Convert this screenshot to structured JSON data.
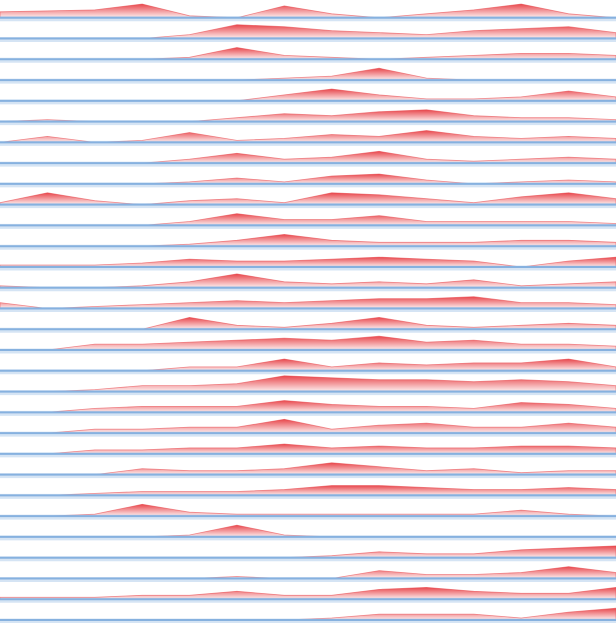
{
  "chart_data": {
    "type": "ridgeline",
    "x": [
      0,
      1,
      2,
      3,
      4,
      5,
      6,
      7,
      8,
      9,
      10,
      11,
      12,
      13
    ],
    "xlim": [
      0,
      13
    ],
    "ylim": [
      0,
      1
    ],
    "color": "#e8474c",
    "line_color": "#86b1df",
    "series": [
      {
        "values": [
          0.3,
          0.35,
          0.4,
          0.7,
          0.1,
          0,
          0.6,
          0.2,
          0,
          0.2,
          0.4,
          0.7,
          0.2,
          0
        ]
      },
      {
        "values": [
          0,
          0,
          0,
          0,
          0.2,
          0.7,
          0.6,
          0.4,
          0.3,
          0.2,
          0.4,
          0.5,
          0.6,
          0.3
        ]
      },
      {
        "values": [
          0,
          0,
          0,
          0,
          0.1,
          0.6,
          0.2,
          0.1,
          0,
          0.1,
          0.2,
          0.3,
          0.3,
          0.2
        ]
      },
      {
        "values": [
          0,
          0,
          0,
          0,
          0,
          0,
          0.1,
          0.2,
          0.6,
          0.1,
          0,
          0,
          0,
          0
        ]
      },
      {
        "values": [
          0,
          0,
          0,
          0,
          0,
          0,
          0.3,
          0.6,
          0.3,
          0.1,
          0.1,
          0.2,
          0.5,
          0.2
        ]
      },
      {
        "values": [
          0,
          0.1,
          0,
          0,
          0,
          0.2,
          0.4,
          0.3,
          0.5,
          0.6,
          0.3,
          0.2,
          0.2,
          0.1
        ]
      },
      {
        "values": [
          0,
          0.3,
          0,
          0.1,
          0.5,
          0.1,
          0.2,
          0.4,
          0.3,
          0.6,
          0.3,
          0.2,
          0.3,
          0.2
        ]
      },
      {
        "values": [
          0,
          0,
          0,
          0,
          0.2,
          0.5,
          0.2,
          0.3,
          0.6,
          0.2,
          0.1,
          0.2,
          0.3,
          0.2
        ]
      },
      {
        "values": [
          0,
          0,
          0,
          0,
          0.1,
          0.3,
          0.1,
          0.4,
          0.5,
          0.2,
          0,
          0.1,
          0.2,
          0.1
        ]
      },
      {
        "values": [
          0.1,
          0.6,
          0.2,
          0,
          0.2,
          0.3,
          0.1,
          0.6,
          0.5,
          0.3,
          0.1,
          0.4,
          0.6,
          0.3
        ]
      },
      {
        "values": [
          0,
          0,
          0,
          0,
          0.2,
          0.6,
          0.3,
          0.3,
          0.5,
          0.2,
          0.2,
          0.2,
          0.2,
          0.1
        ]
      },
      {
        "values": [
          0,
          0,
          0,
          0,
          0.1,
          0.3,
          0.6,
          0.3,
          0.2,
          0.2,
          0.2,
          0.3,
          0.3,
          0.2
        ]
      },
      {
        "values": [
          0.1,
          0.1,
          0.1,
          0.2,
          0.4,
          0.3,
          0.3,
          0.4,
          0.5,
          0.4,
          0.3,
          0,
          0.3,
          0.5
        ]
      },
      {
        "values": [
          0.1,
          0,
          0,
          0.1,
          0.3,
          0.7,
          0.3,
          0.2,
          0.3,
          0.2,
          0.4,
          0.1,
          0.2,
          0.3
        ]
      },
      {
        "values": [
          0.3,
          0,
          0.1,
          0.2,
          0.3,
          0.4,
          0.3,
          0.4,
          0.5,
          0.5,
          0.6,
          0.3,
          0.3,
          0.2
        ]
      },
      {
        "values": [
          0,
          0,
          0,
          0,
          0.6,
          0.2,
          0.1,
          0.3,
          0.6,
          0.2,
          0.1,
          0.2,
          0.3,
          0.2
        ]
      },
      {
        "values": [
          0,
          0,
          0.3,
          0.3,
          0.4,
          0.5,
          0.6,
          0.5,
          0.7,
          0.4,
          0.5,
          0.3,
          0.3,
          0.2
        ]
      },
      {
        "values": [
          0,
          0,
          0,
          0,
          0.2,
          0.2,
          0.6,
          0.2,
          0.4,
          0.3,
          0.4,
          0.4,
          0.6,
          0.2
        ]
      },
      {
        "values": [
          0,
          0,
          0.1,
          0.3,
          0.3,
          0.4,
          0.8,
          0.7,
          0.6,
          0.6,
          0.5,
          0.6,
          0.5,
          0.3
        ]
      },
      {
        "values": [
          0,
          0,
          0.2,
          0.3,
          0.3,
          0.3,
          0.6,
          0.4,
          0.3,
          0.3,
          0.2,
          0.5,
          0.4,
          0.2
        ]
      },
      {
        "values": [
          0,
          0,
          0.2,
          0.2,
          0.3,
          0.3,
          0.7,
          0.2,
          0.4,
          0.5,
          0.3,
          0.3,
          0.5,
          0.3
        ]
      },
      {
        "values": [
          0,
          0,
          0.2,
          0.2,
          0.3,
          0.3,
          0.5,
          0.3,
          0.4,
          0.3,
          0.3,
          0.4,
          0.4,
          0.3
        ]
      },
      {
        "values": [
          0,
          0,
          0,
          0.3,
          0.2,
          0.2,
          0.3,
          0.6,
          0.4,
          0.2,
          0.3,
          0.1,
          0.2,
          0.2
        ]
      },
      {
        "values": [
          0,
          0,
          0.1,
          0.2,
          0.2,
          0.2,
          0.3,
          0.5,
          0.5,
          0.4,
          0.3,
          0.3,
          0.4,
          0.3
        ]
      },
      {
        "values": [
          0,
          0,
          0.1,
          0.6,
          0.2,
          0.1,
          0.1,
          0.1,
          0.1,
          0.1,
          0.1,
          0.3,
          0.1,
          0
        ]
      },
      {
        "values": [
          0,
          0,
          0,
          0,
          0.1,
          0.6,
          0.1,
          0,
          0,
          0,
          0,
          0,
          0,
          0
        ]
      },
      {
        "values": [
          0,
          0,
          0,
          0,
          0,
          0,
          0,
          0.1,
          0.3,
          0.2,
          0.2,
          0.4,
          0.5,
          0.6
        ]
      },
      {
        "values": [
          0,
          0,
          0,
          0,
          0,
          0.1,
          0,
          0,
          0.4,
          0.2,
          0.2,
          0.3,
          0.6,
          0.3
        ]
      },
      {
        "values": [
          0.1,
          0.1,
          0.1,
          0.2,
          0.2,
          0.4,
          0.2,
          0.2,
          0.5,
          0.6,
          0.4,
          0.3,
          0.3,
          0.6
        ]
      },
      {
        "values": [
          0,
          0,
          0,
          0,
          0,
          0,
          0,
          0.1,
          0.3,
          0.3,
          0.3,
          0.1,
          0.4,
          0.6
        ]
      }
    ]
  }
}
